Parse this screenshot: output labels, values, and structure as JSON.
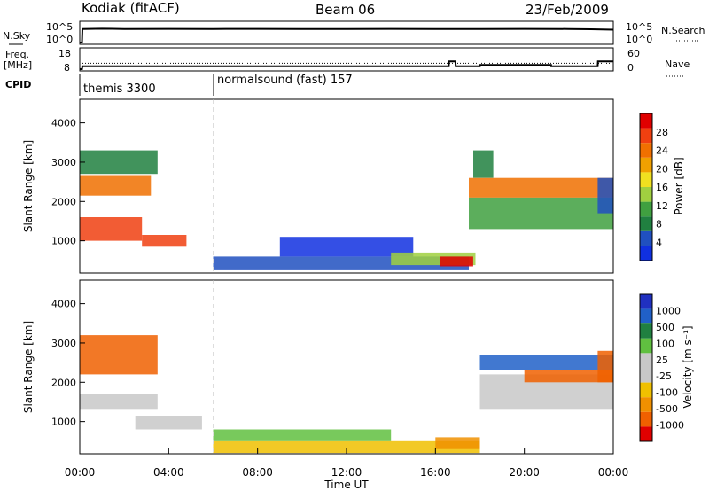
{
  "header": {
    "station": "Kodiak (fitACF)",
    "beam": "Beam 06",
    "date": "23/Feb/2009"
  },
  "left_labels": {
    "nsky": "N.Sky",
    "freq": "Freq.",
    "freq_unit": "[MHz]",
    "cpid": "CPID"
  },
  "right_labels": {
    "nsearch": "N.Search",
    "nave": "Nave"
  },
  "cpid_blocks": [
    {
      "label": "themis 3300",
      "start_hour": 0,
      "end_hour": 6
    },
    {
      "label": "normalsound (fast) 157",
      "start_hour": 6,
      "end_hour": 24
    }
  ],
  "colors": {
    "power": [
      "#1030e0",
      "#2050c0",
      "#208040",
      "#40a040",
      "#a0d040",
      "#f0e020",
      "#f0a000",
      "#f07000",
      "#f04010",
      "#e00000"
    ],
    "velocity": [
      "#2030c0",
      "#2060c8",
      "#208040",
      "#60c040",
      "#c8c8c8",
      "#c8c8c8",
      "#f0c000",
      "#f09000",
      "#f06000",
      "#e00000"
    ]
  },
  "chart_data": [
    {
      "type": "line",
      "title": "",
      "ylabel": "N.Sky",
      "ylabel_right": "N.Search",
      "xlim": [
        0,
        24
      ],
      "y_scale": "log",
      "yticks": [
        "10^5",
        "10^0"
      ],
      "yticks_right": [
        "10^5",
        "10^0"
      ],
      "series": [
        {
          "x": [
            0,
            0.1,
            0.12,
            1,
            2,
            4,
            6,
            8,
            10,
            12,
            14,
            16,
            18,
            20,
            22,
            23,
            24
          ],
          "values": [
            1,
            1,
            3000,
            3500,
            3000,
            3200,
            3000,
            3200,
            3000,
            3000,
            3100,
            3000,
            3000,
            3100,
            3000,
            2500,
            2000
          ]
        }
      ]
    },
    {
      "type": "line",
      "title": "",
      "ylabel": "Freq. [MHz]",
      "ylabel_right": "Nave",
      "xlim": [
        0,
        24
      ],
      "yticks": [
        "18",
        "8"
      ],
      "yticks_right": [
        "60",
        "0"
      ],
      "series": [
        {
          "x": [
            0,
            0.1,
            0.12,
            16.6,
            16.61,
            16.9,
            16.91,
            18,
            18.01,
            21.2,
            21.21,
            23.3,
            23.31,
            24
          ],
          "values": [
            8,
            8,
            9.5,
            9.5,
            12,
            12,
            9.5,
            9.5,
            10.2,
            10.2,
            9.5,
            9.5,
            12,
            12
          ]
        }
      ]
    },
    {
      "type": "heatmap",
      "title": "",
      "xlabel": "",
      "ylabel": "Slant Range [km]",
      "xlim": [
        0,
        24
      ],
      "ylim": [
        180,
        4600
      ],
      "yticks": [
        1000,
        2000,
        3000,
        4000
      ],
      "colorbar_label": "Power [dB]",
      "colorbar_ticks": [
        "4",
        "8",
        "12",
        "16",
        "20",
        "24",
        "28"
      ],
      "regions": [
        {
          "x": [
            0,
            3.2
          ],
          "y": [
            2150,
            2650
          ],
          "level": 7
        },
        {
          "x": [
            0,
            2.8
          ],
          "y": [
            1000,
            1600
          ],
          "level": 8
        },
        {
          "x": [
            2.8,
            4.8
          ],
          "y": [
            850,
            1150
          ],
          "level": 8
        },
        {
          "x": [
            0,
            3.5
          ],
          "y": [
            2700,
            3300
          ],
          "level": 2
        },
        {
          "x": [
            6,
            17.5
          ],
          "y": [
            250,
            600
          ],
          "level": 1
        },
        {
          "x": [
            9,
            15
          ],
          "y": [
            600,
            1100
          ],
          "level": 0
        },
        {
          "x": [
            14,
            17.8
          ],
          "y": [
            380,
            700
          ],
          "level": 4
        },
        {
          "x": [
            16.2,
            17.7
          ],
          "y": [
            350,
            600
          ],
          "level": 9
        },
        {
          "x": [
            17.5,
            24
          ],
          "y": [
            2100,
            2600
          ],
          "level": 7
        },
        {
          "x": [
            17.5,
            24
          ],
          "y": [
            1300,
            2100
          ],
          "level": 3
        },
        {
          "x": [
            17.7,
            18.6
          ],
          "y": [
            2600,
            3300
          ],
          "level": 2
        },
        {
          "x": [
            23.3,
            24
          ],
          "y": [
            1700,
            2600
          ],
          "level": 1
        }
      ]
    },
    {
      "type": "heatmap",
      "title": "",
      "xlabel": "Time UT",
      "ylabel": "Slant Range [km]",
      "xlim": [
        0,
        24
      ],
      "ylim": [
        180,
        4600
      ],
      "yticks": [
        1000,
        2000,
        3000,
        4000
      ],
      "xticks": [
        "00:00",
        "04:00",
        "08:00",
        "12:00",
        "16:00",
        "20:00",
        "00:00"
      ],
      "colorbar_label": "Velocity [m s⁻¹]",
      "colorbar_ticks": [
        "1000",
        "500",
        "100",
        "25",
        "-25",
        "-100",
        "-500",
        "-1000"
      ],
      "regions": [
        {
          "x": [
            0,
            3.5
          ],
          "y": [
            2200,
            3200
          ],
          "level": 8
        },
        {
          "x": [
            0,
            3.5
          ],
          "y": [
            1300,
            1700
          ],
          "level": 4
        },
        {
          "x": [
            2.5,
            5.5
          ],
          "y": [
            800,
            1150
          ],
          "level": 4
        },
        {
          "x": [
            6,
            18
          ],
          "y": [
            200,
            500
          ],
          "level": 6
        },
        {
          "x": [
            16,
            18
          ],
          "y": [
            300,
            600
          ],
          "level": 7
        },
        {
          "x": [
            6,
            14
          ],
          "y": [
            500,
            800
          ],
          "level": 3
        },
        {
          "x": [
            18,
            24
          ],
          "y": [
            2300,
            2700
          ],
          "level": 1
        },
        {
          "x": [
            18,
            24
          ],
          "y": [
            1300,
            2200
          ],
          "level": 4
        },
        {
          "x": [
            20,
            24
          ],
          "y": [
            2000,
            2300
          ],
          "level": 8
        },
        {
          "x": [
            23.3,
            24
          ],
          "y": [
            2000,
            2800
          ],
          "level": 8
        }
      ]
    }
  ]
}
